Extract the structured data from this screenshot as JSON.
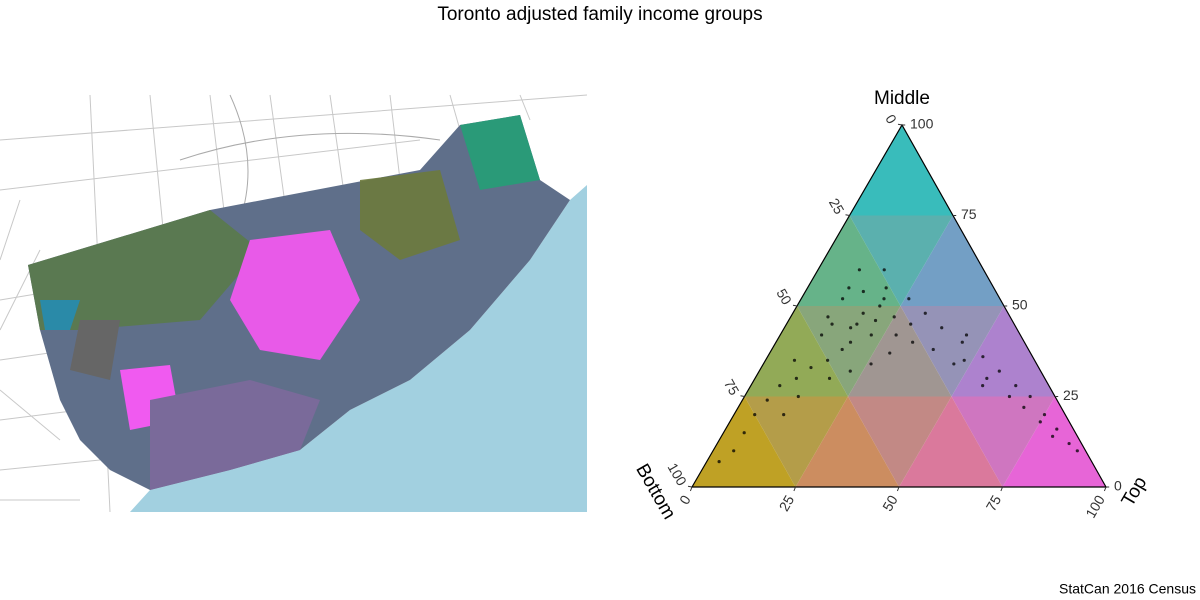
{
  "chart_data": {
    "type": "ternary",
    "title": "Toronto adjusted family income groups",
    "caption": "StatCan 2016 Census",
    "axes": {
      "bottom": "Bottom",
      "middle": "Middle",
      "top": "Top"
    },
    "bottom_ticks": [
      0,
      25,
      50,
      75,
      100
    ],
    "middle_ticks": [
      0,
      25,
      50,
      75,
      100
    ],
    "top_ticks": [
      0,
      25,
      50,
      75,
      100
    ],
    "corner_colors": {
      "bottom": "#c9a400",
      "middle": "#17c9c9",
      "top": "#ff55ee"
    },
    "series": [
      {
        "color": "#000000",
        "bottom": [
          35,
          38,
          30,
          33,
          40,
          28,
          36,
          42,
          25,
          30,
          45,
          50,
          55,
          60,
          65,
          58,
          48,
          44,
          38,
          32,
          26,
          22,
          20,
          18,
          15,
          12,
          10,
          8,
          6,
          5,
          4,
          3,
          6,
          9,
          14,
          17,
          23,
          27,
          34,
          40,
          46,
          52,
          70,
          75,
          80,
          85,
          90,
          62,
          68,
          35,
          30,
          24,
          28,
          44,
          11,
          7,
          16,
          20,
          2,
          13
        ],
        "middle": [
          48,
          45,
          50,
          46,
          44,
          47,
          42,
          40,
          45,
          42,
          38,
          35,
          33,
          30,
          28,
          35,
          42,
          47,
          52,
          54,
          55,
          52,
          48,
          44,
          40,
          36,
          32,
          28,
          25,
          20,
          16,
          12,
          14,
          22,
          30,
          35,
          38,
          40,
          37,
          34,
          32,
          30,
          24,
          20,
          15,
          10,
          7,
          25,
          20,
          55,
          60,
          60,
          52,
          45,
          25,
          18,
          28,
          34,
          10,
          42
        ],
        "top": [
          17,
          17,
          20,
          21,
          16,
          25,
          22,
          18,
          30,
          28,
          17,
          15,
          12,
          10,
          7,
          7,
          10,
          9,
          10,
          14,
          19,
          26,
          32,
          38,
          45,
          52,
          58,
          64,
          69,
          75,
          80,
          85,
          80,
          69,
          56,
          48,
          39,
          33,
          29,
          26,
          22,
          18,
          6,
          5,
          5,
          5,
          3,
          13,
          12,
          10,
          10,
          16,
          20,
          11,
          64,
          75,
          56,
          46,
          88,
          45
        ]
      }
    ]
  }
}
